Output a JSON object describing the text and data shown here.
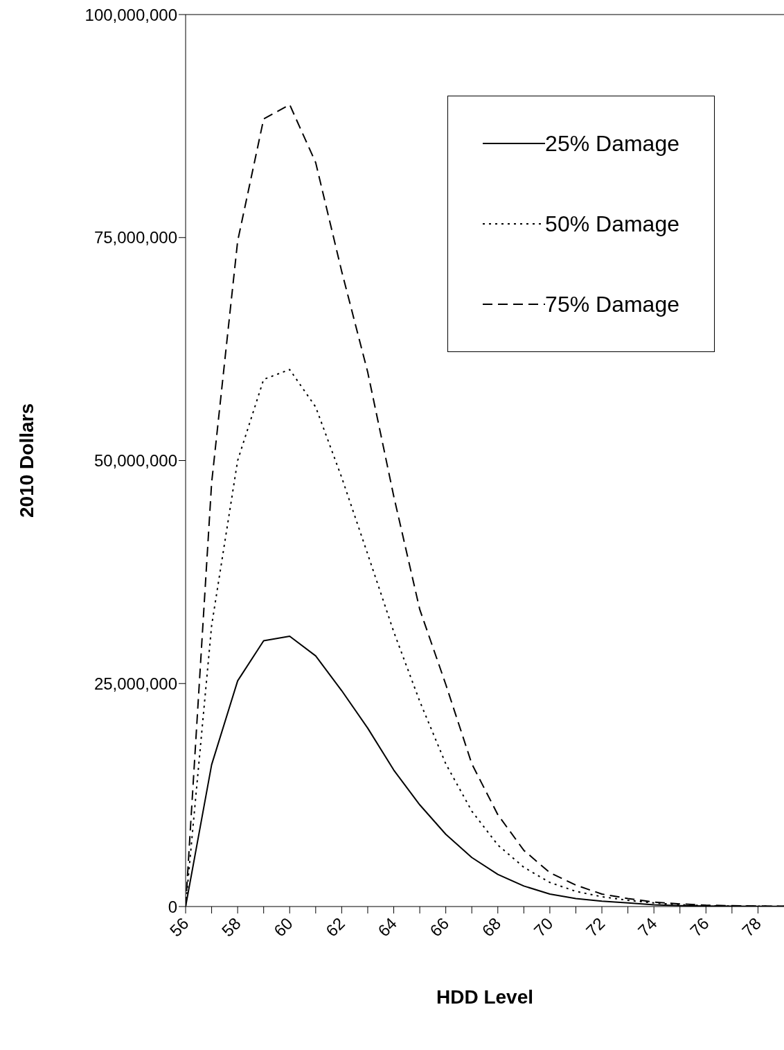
{
  "chart_data": {
    "type": "line",
    "xlabel": "HDD Level",
    "ylabel": "2010 Dollars",
    "x": [
      56,
      57,
      58,
      59,
      60,
      61,
      62,
      63,
      64,
      65,
      66,
      67,
      68,
      69,
      70,
      71,
      72,
      73,
      74,
      75,
      76,
      77,
      78,
      79
    ],
    "series": [
      {
        "name": "25% Damage",
        "color": "#000000",
        "line_style": "solid",
        "values": [
          0,
          15900000,
          25300000,
          29800000,
          30300000,
          28100000,
          24200000,
          20000000,
          15300000,
          11400000,
          8100000,
          5500000,
          3600000,
          2300000,
          1400000,
          900000,
          600000,
          400000,
          200000,
          100000,
          50000,
          30000,
          20000,
          10000
        ]
      },
      {
        "name": "50% Damage",
        "color": "#000000",
        "line_style": "dotted",
        "values": [
          0,
          31500000,
          50000000,
          59100000,
          60200000,
          56000000,
          48100000,
          39500000,
          30800000,
          23000000,
          16000000,
          10700000,
          6900000,
          4400000,
          2700000,
          1700000,
          1100000,
          700000,
          400000,
          200000,
          100000,
          60000,
          40000,
          20000
        ]
      },
      {
        "name": "75% Damage",
        "color": "#000000",
        "line_style": "dashed",
        "values": [
          0,
          47500000,
          74600000,
          88300000,
          89900000,
          83400000,
          71200000,
          59900000,
          46000000,
          33300000,
          24900000,
          16000000,
          10300000,
          6300000,
          3800000,
          2400000,
          1400000,
          900000,
          500000,
          300000,
          150000,
          90000,
          60000,
          30000
        ]
      }
    ],
    "xlim": [
      56,
      79
    ],
    "xticks": [
      56,
      {
        "value": 57,
        "label": null
      },
      58,
      {
        "value": 59,
        "label": null
      },
      60,
      {
        "value": 61,
        "label": null
      },
      62,
      {
        "value": 63,
        "label": null
      },
      64,
      {
        "value": 65,
        "label": null
      },
      66,
      {
        "value": 67,
        "label": null
      },
      68,
      {
        "value": 69,
        "label": null
      },
      70,
      {
        "value": 71,
        "label": null
      },
      72,
      {
        "value": 73,
        "label": null
      },
      74,
      {
        "value": 75,
        "label": null
      },
      76,
      {
        "value": 77,
        "label": null
      },
      78
    ],
    "ylim": [
      0,
      100000000
    ],
    "yticks": [
      {
        "value": 0,
        "label": "0"
      },
      {
        "value": 25000000,
        "label": "25,000,000"
      },
      {
        "value": 50000000,
        "label": "50,000,000"
      },
      {
        "value": 75000000,
        "label": "75,000,000"
      },
      {
        "value": 100000000,
        "label": "100,000,000"
      }
    ],
    "grid": false,
    "legend": "top right",
    "marker": "none"
  }
}
